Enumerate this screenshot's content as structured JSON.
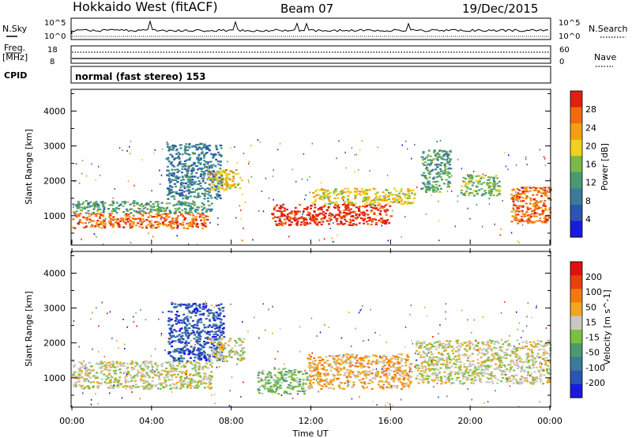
{
  "header": {
    "station": "Hokkaido West (fitACF)",
    "beam": "Beam 07",
    "date": "19/Dec/2015"
  },
  "aux_panels": {
    "nsky_label": "N.Sky",
    "nsky_scale_top": "10^5",
    "nsky_scale_bottom": "10^0",
    "nsearch_label": "N.Search",
    "nsearch_scale_top": "10^5",
    "nsearch_scale_bottom": "10^0",
    "freq_label_1": "Freq.",
    "freq_label_2": "[MHz]",
    "freq_top": "18",
    "freq_bottom": "8",
    "nave_label": "Nave",
    "nave_top": "60",
    "nave_bottom": "0",
    "cpid_label": "CPID",
    "cpid_text": "normal (fast stereo) 153"
  },
  "time_axis": {
    "label": "Time UT",
    "ticks": [
      "00:00",
      "04:00",
      "08:00",
      "12:00",
      "16:00",
      "20:00",
      "00:00"
    ]
  },
  "colors": {
    "power_scale": [
      "#1a1adc",
      "#2b55b0",
      "#3a7a9a",
      "#4a9a70",
      "#7ab84a",
      "#f0d020",
      "#f0a010",
      "#f06a10",
      "#e02010"
    ],
    "velocity_scale": [
      "#1a1adc",
      "#2b55b0",
      "#3a7a9a",
      "#4a9a70",
      "#7cc040",
      "#c8c8c0",
      "#f0a820",
      "#f07a10",
      "#e84010",
      "#e01010"
    ]
  },
  "chart_data": [
    {
      "type": "heatmap",
      "panel": "power",
      "ylabel": "Slant Range [km]",
      "yticks": [
        1000,
        2000,
        3000,
        4000
      ],
      "ylim": [
        180,
        4600
      ],
      "xlim_hours": [
        0,
        24
      ],
      "colorbar": {
        "label": "Power [dB]",
        "ticks": [
          "28",
          "24",
          "20",
          "16",
          "12",
          "8",
          "4"
        ]
      },
      "bands": [
        {
          "t0": 0.0,
          "t1": 6.8,
          "r0": 650,
          "r1": 1100,
          "level": 7
        },
        {
          "t0": 0.0,
          "t1": 7.0,
          "r0": 1100,
          "r1": 1450,
          "level": 3
        },
        {
          "t0": 4.7,
          "t1": 7.5,
          "r0": 1500,
          "r1": 3100,
          "level": 2
        },
        {
          "t0": 6.8,
          "t1": 8.5,
          "r0": 1750,
          "r1": 2350,
          "level": 5
        },
        {
          "t0": 10.0,
          "t1": 16.0,
          "r0": 750,
          "r1": 1350,
          "level": 8
        },
        {
          "t0": 12.0,
          "t1": 17.2,
          "r0": 1350,
          "r1": 1800,
          "level": 5
        },
        {
          "t0": 17.5,
          "t1": 19.0,
          "r0": 1700,
          "r1": 2900,
          "level": 3
        },
        {
          "t0": 19.5,
          "t1": 21.5,
          "r0": 1600,
          "r1": 2200,
          "level": 4
        },
        {
          "t0": 22.0,
          "t1": 24.0,
          "r0": 800,
          "r1": 1850,
          "level": 7
        }
      ]
    },
    {
      "type": "heatmap",
      "panel": "velocity",
      "ylabel": "Slant Range [km]",
      "yticks": [
        1000,
        2000,
        3000,
        4000
      ],
      "ylim": [
        180,
        4600
      ],
      "xlim_hours": [
        0,
        24
      ],
      "colorbar": {
        "label": "Velocity [m s^-1]",
        "ticks": [
          "200",
          "100",
          "50",
          "15",
          "-15",
          "-50",
          "-100",
          "-200"
        ]
      },
      "bands": [
        {
          "t0": 0.0,
          "t1": 7.0,
          "r0": 700,
          "r1": 1500,
          "level": 5
        },
        {
          "t0": 4.8,
          "t1": 7.6,
          "r0": 1500,
          "r1": 3150,
          "level": 1
        },
        {
          "t0": 6.8,
          "t1": 8.6,
          "r0": 1500,
          "r1": 2150,
          "level": 5
        },
        {
          "t0": 9.3,
          "t1": 11.8,
          "r0": 550,
          "r1": 1300,
          "level": 4
        },
        {
          "t0": 11.8,
          "t1": 17.0,
          "r0": 700,
          "r1": 1700,
          "level": 6
        },
        {
          "t0": 17.2,
          "t1": 24.0,
          "r0": 850,
          "r1": 2100,
          "level": 5
        }
      ]
    }
  ]
}
